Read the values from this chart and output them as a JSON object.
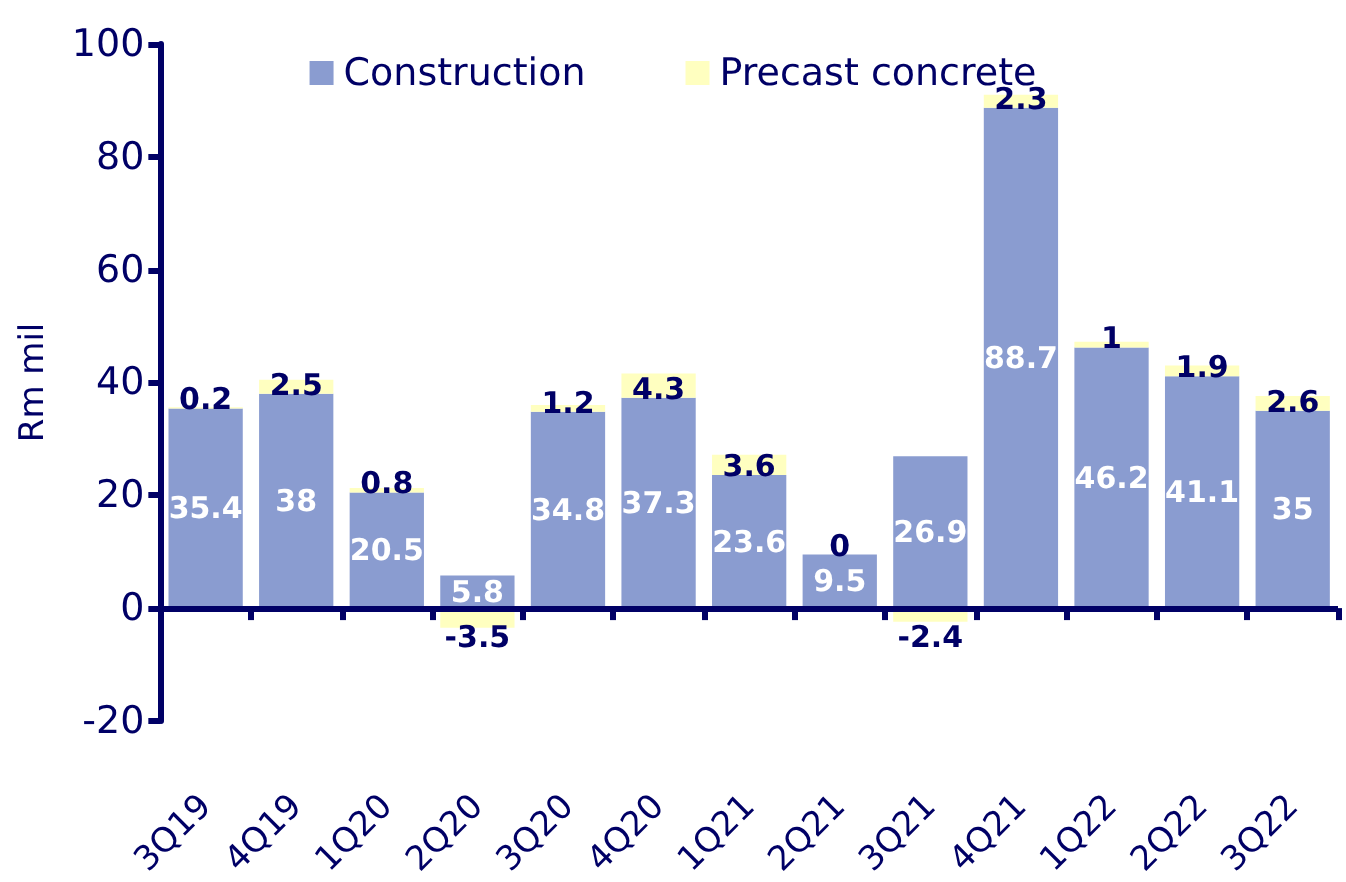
{
  "chart_data": {
    "type": "bar",
    "stacked": true,
    "ylabel": "Rm mil",
    "categories": [
      "3Q19",
      "4Q19",
      "1Q20",
      "2Q20",
      "3Q20",
      "4Q20",
      "1Q21",
      "2Q21",
      "3Q21",
      "4Q21",
      "1Q22",
      "2Q22",
      "3Q22"
    ],
    "series": [
      {
        "name": "Construction",
        "color": "#8a9cd0",
        "values": [
          35.4,
          38,
          20.5,
          5.8,
          34.8,
          37.3,
          23.6,
          9.5,
          26.9,
          88.7,
          46.2,
          41.1,
          35
        ]
      },
      {
        "name": "Precast concrete",
        "color": "#ffffc0",
        "values": [
          0.2,
          2.5,
          0.8,
          -3.5,
          1.2,
          4.3,
          3.6,
          0,
          -2.4,
          2.3,
          1,
          1.9,
          2.6
        ]
      }
    ],
    "ref_lines": [
      {
        "axis": "y",
        "value": 0,
        "color": "#000066"
      }
    ],
    "ylim": [
      -20,
      100
    ],
    "yticks": [
      -20,
      0,
      20,
      40,
      60,
      80,
      100
    ],
    "grid": false,
    "legend": "top",
    "data_labels": true
  }
}
